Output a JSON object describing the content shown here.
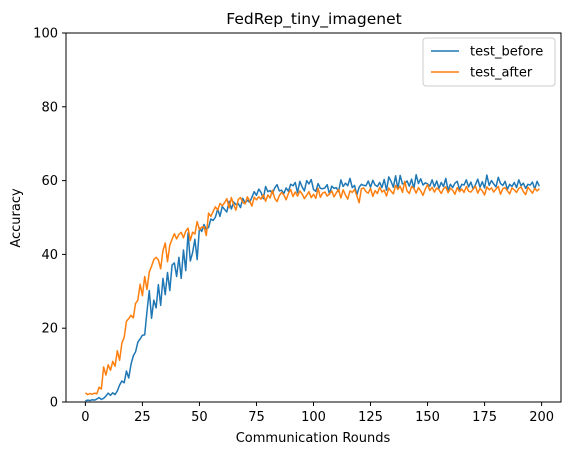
{
  "chart_data": {
    "type": "line",
    "title": "FedRep_tiny_imagenet",
    "xlabel": "Communication Rounds",
    "ylabel": "Accuracy",
    "xlim": [
      -8.5,
      208.5
    ],
    "ylim": [
      0,
      100
    ],
    "xticks": [
      0,
      25,
      50,
      75,
      100,
      125,
      150,
      175,
      200
    ],
    "yticks": [
      0,
      20,
      40,
      60,
      80,
      100
    ],
    "grid": false,
    "legend_position": "upper right",
    "series": [
      {
        "name": "test_before",
        "color": "#1f77b4",
        "values": [
          0.3,
          0.5,
          0.4,
          0.6,
          0.5,
          0.8,
          1.2,
          0.7,
          1.0,
          1.6,
          2.4,
          1.8,
          2.5,
          2.0,
          3.0,
          4.6,
          5.7,
          5.2,
          8.4,
          6.5,
          10.2,
          12.5,
          13.6,
          16.2,
          17.1,
          18.1,
          18.2,
          24.5,
          30.2,
          22.7,
          27.6,
          25.5,
          31.8,
          26.2,
          33.5,
          29.1,
          35.1,
          30.2,
          37.1,
          37.7,
          34.0,
          39.2,
          33.5,
          41.2,
          35.6,
          45.8,
          38.2,
          40.5,
          44.1,
          38.6,
          47.2,
          46.2,
          48.1,
          46.8,
          47.3,
          49.6,
          49.2,
          50.1,
          52.3,
          50.3,
          53.0,
          52.2,
          51.5,
          54.4,
          52.3,
          54.2,
          53.5,
          53.8,
          52.7,
          55.2,
          53.9,
          54.7,
          54.1,
          55.5,
          57.0,
          56.0,
          57.7,
          56.8,
          55.1,
          58.4,
          57.0,
          57.3,
          56.5,
          58.0,
          58.9,
          57.2,
          57.4,
          56.5,
          58.0,
          57.1,
          59.0,
          58.6,
          59.5,
          56.7,
          59.8,
          58.3,
          57.2,
          60.0,
          59.1,
          60.3,
          57.6,
          57.1,
          59.2,
          57.9,
          57.8,
          58.0,
          58.9,
          56.3,
          58.5,
          57.9,
          58.1,
          57.0,
          60.2,
          58.4,
          59.3,
          58.6,
          60.6,
          58.1,
          58.7,
          56.1,
          58.2,
          59.0,
          58.7,
          58.6,
          59.9,
          58.2,
          60.1,
          58.8,
          58.4,
          59.5,
          58.1,
          60.3,
          57.4,
          61.0,
          59.8,
          58.2,
          61.3,
          57.7,
          61.4,
          59.1,
          59.2,
          59.9,
          58.5,
          60.4,
          57.8,
          61.6,
          59.2,
          60.5,
          58.8,
          59.4,
          59.1,
          58.5,
          60.2,
          58.3,
          59.9,
          57.9,
          59.5,
          58.4,
          60.6,
          57.3,
          59.0,
          58.1,
          59.3,
          59.8,
          57.6,
          59.0,
          58.8,
          60.2,
          58.3,
          59.6,
          57.7,
          58.9,
          60.4,
          58.2,
          59.7,
          58.0,
          61.5,
          58.7,
          60.0,
          59.1,
          58.3,
          60.9,
          59.2,
          58.7,
          59.8,
          57.6,
          59.0,
          58.4,
          59.5,
          58.1,
          60.2,
          58.6,
          59.3,
          57.9,
          59.0,
          58.8,
          59.6,
          57.7,
          59.8,
          58.5
        ]
      },
      {
        "name": "test_after",
        "color": "#ff7f0e",
        "values": [
          2.5,
          2.0,
          2.3,
          2.1,
          2.4,
          2.2,
          4.0,
          3.5,
          9.5,
          7.3,
          10.1,
          8.6,
          11.0,
          9.7,
          13.9,
          11.3,
          16.0,
          17.5,
          21.9,
          22.6,
          23.5,
          22.8,
          26.7,
          27.6,
          31.9,
          28.8,
          34.0,
          30.5,
          35.2,
          36.8,
          38.6,
          39.2,
          38.5,
          36.1,
          41.0,
          43.1,
          38.0,
          42.5,
          44.1,
          45.6,
          44.2,
          45.4,
          46.0,
          44.5,
          46.3,
          47.1,
          43.8,
          46.0,
          45.5,
          48.9,
          46.7,
          47.4,
          47.5,
          45.1,
          51.2,
          50.3,
          51.6,
          52.9,
          52.0,
          53.8,
          53.2,
          54.0,
          55.1,
          52.6,
          55.4,
          53.5,
          52.0,
          54.9,
          55.4,
          54.1,
          53.7,
          55.6,
          54.5,
          53.1,
          55.5,
          54.8,
          55.6,
          55.0,
          56.2,
          54.4,
          56.1,
          55.3,
          57.4,
          55.2,
          54.3,
          55.9,
          56.8,
          56.1,
          54.8,
          56.5,
          57.6,
          55.7,
          56.9,
          55.8,
          57.2,
          56.4,
          55.1,
          56.0,
          57.0,
          55.4,
          56.3,
          55.2,
          57.9,
          55.5,
          56.6,
          56.9,
          55.8,
          56.4,
          57.2,
          55.6,
          56.7,
          57.6,
          55.3,
          57.5,
          56.1,
          55.0,
          57.2,
          56.8,
          57.6,
          55.9,
          54.0,
          57.8,
          58.0,
          57.0,
          56.6,
          57.9,
          55.7,
          57.3,
          56.5,
          58.2,
          56.9,
          57.4,
          55.8,
          58.0,
          57.1,
          56.4,
          58.7,
          57.6,
          58.5,
          56.8,
          59.8,
          57.2,
          56.5,
          58.4,
          57.9,
          56.6,
          58.1,
          57.2,
          56.0,
          57.7,
          58.9,
          57.3,
          58.2,
          56.9,
          58.0,
          57.5,
          56.5,
          57.8,
          58.3,
          56.7,
          57.9,
          57.4,
          56.3,
          58.1,
          57.0,
          57.7,
          56.8,
          58.4,
          57.1,
          56.9,
          57.7,
          58.5,
          56.6,
          57.9,
          57.2,
          56.1,
          58.3,
          57.5,
          58.0,
          56.9,
          57.7,
          58.4,
          56.3,
          57.8,
          58.1,
          57.2,
          56.4,
          58.0,
          57.5,
          56.8,
          57.9,
          58.3,
          57.0,
          56.2,
          58.2,
          57.4,
          56.6,
          57.9,
          57.2,
          57.8
        ]
      }
    ]
  }
}
